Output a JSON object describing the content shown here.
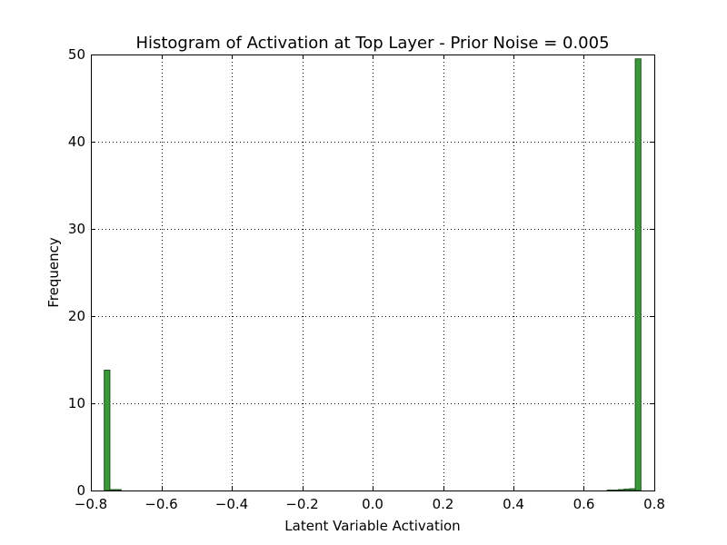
{
  "chart_data": {
    "type": "bar",
    "title": "Histogram of Activation at Top Layer - Prior Noise = 0.005",
    "xlabel": "Latent Variable Activation",
    "ylabel": "Frequency",
    "xlim": [
      -0.8,
      0.8
    ],
    "ylim": [
      0,
      50
    ],
    "grid": true,
    "x_ticks": [
      "−0.8",
      "−0.6",
      "−0.4",
      "−0.2",
      "0.0",
      "0.2",
      "0.4",
      "0.6",
      "0.8"
    ],
    "x_tick_values": [
      -0.8,
      -0.6,
      -0.4,
      -0.2,
      0.0,
      0.2,
      0.4,
      0.6,
      0.8
    ],
    "y_ticks": [
      "0",
      "10",
      "20",
      "30",
      "40",
      "50"
    ],
    "y_tick_values": [
      0,
      10,
      20,
      30,
      40,
      50
    ],
    "bar_color": "#3a9a3a",
    "bar_edge_color": "#1e4f1e",
    "bins": [
      {
        "x0": -0.762,
        "x1": -0.746,
        "value": 13.8
      },
      {
        "x0": -0.746,
        "x1": -0.73,
        "value": 0.1
      },
      {
        "x0": -0.73,
        "x1": -0.714,
        "value": 0.1
      },
      {
        "x0": 0.666,
        "x1": 0.682,
        "value": 0.05
      },
      {
        "x0": 0.682,
        "x1": 0.698,
        "value": 0.05
      },
      {
        "x0": 0.698,
        "x1": 0.714,
        "value": 0.1
      },
      {
        "x0": 0.714,
        "x1": 0.73,
        "value": 0.15
      },
      {
        "x0": 0.73,
        "x1": 0.746,
        "value": 0.2
      },
      {
        "x0": 0.746,
        "x1": 0.762,
        "value": 49.5
      }
    ]
  }
}
